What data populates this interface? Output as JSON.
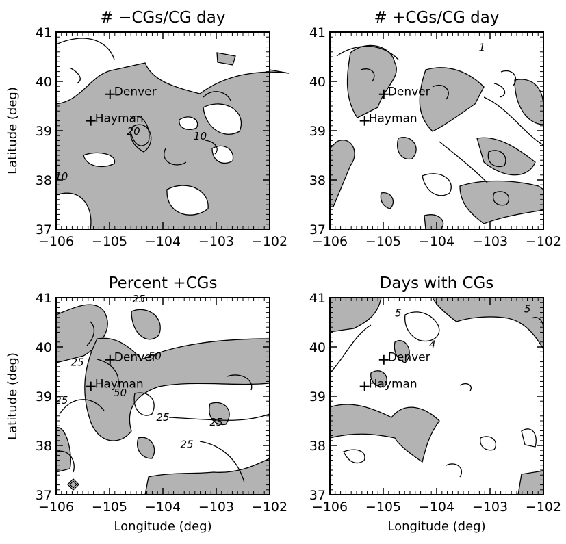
{
  "figure": {
    "shade_color": "#b3b3b3",
    "line_color": "#000000"
  },
  "chart_data": [
    {
      "type": "heatmap",
      "title": "# −CGs/CG day",
      "xlabel": "",
      "ylabel": "Latitude (deg)",
      "xlim": [
        -106,
        -102
      ],
      "ylim": [
        37,
        41
      ],
      "xticks": [
        "−106",
        "−105",
        "−104",
        "−103",
        "−102"
      ],
      "yticks": [
        "37",
        "38",
        "39",
        "40",
        "41"
      ],
      "places": [
        {
          "name": "Denver",
          "lon": -104.99,
          "lat": 39.74
        },
        {
          "name": "Hayman",
          "lon": -105.35,
          "lat": 39.2
        }
      ],
      "contour_labels": [
        {
          "text": "20",
          "lon": -104.55,
          "lat": 38.92
        },
        {
          "text": "10",
          "lon": -103.3,
          "lat": 38.82
        },
        {
          "text": "10",
          "lon": -105.9,
          "lat": 38.0
        }
      ]
    },
    {
      "type": "heatmap",
      "title": "# +CGs/CG day",
      "xlabel": "",
      "ylabel": "",
      "xlim": [
        -106,
        -102
      ],
      "ylim": [
        37,
        41
      ],
      "xticks": [
        "−106",
        "−105",
        "−104",
        "−103",
        "−102"
      ],
      "yticks": [
        "37",
        "38",
        "39",
        "40",
        "41"
      ],
      "places": [
        {
          "name": "Denver",
          "lon": -104.99,
          "lat": 39.74
        },
        {
          "name": "Hayman",
          "lon": -105.35,
          "lat": 39.2
        }
      ],
      "contour_labels": [
        {
          "text": "1",
          "lon": -103.15,
          "lat": 40.62
        }
      ]
    },
    {
      "type": "heatmap",
      "title": "Percent +CGs",
      "xlabel": "Longitude (deg)",
      "ylabel": "Latitude (deg)",
      "xlim": [
        -106,
        -102
      ],
      "ylim": [
        37,
        41
      ],
      "xticks": [
        "−106",
        "−105",
        "−104",
        "−103",
        "−102"
      ],
      "yticks": [
        "37",
        "38",
        "39",
        "40",
        "41"
      ],
      "places": [
        {
          "name": "Denver",
          "lon": -104.99,
          "lat": 39.74
        },
        {
          "name": "Hayman",
          "lon": -105.35,
          "lat": 39.2
        }
      ],
      "contour_labels": [
        {
          "text": "25",
          "lon": -104.45,
          "lat": 40.9
        },
        {
          "text": "25",
          "lon": -105.6,
          "lat": 39.62
        },
        {
          "text": "25",
          "lon": -104.0,
          "lat": 38.5
        },
        {
          "text": "25",
          "lon": -103.0,
          "lat": 38.4
        },
        {
          "text": "25",
          "lon": -103.55,
          "lat": 37.95
        },
        {
          "text": "25",
          "lon": -105.9,
          "lat": 38.85
        },
        {
          "text": "50",
          "lon": -104.15,
          "lat": 39.74
        },
        {
          "text": "50",
          "lon": -104.8,
          "lat": 39.0
        }
      ]
    },
    {
      "type": "heatmap",
      "title": "Days with CGs",
      "xlabel": "Longitude (deg)",
      "ylabel": "",
      "xlim": [
        -106,
        -102
      ],
      "ylim": [
        37,
        41
      ],
      "xticks": [
        "−106",
        "−105",
        "−104",
        "−103",
        "−102"
      ],
      "yticks": [
        "37",
        "38",
        "39",
        "40",
        "41"
      ],
      "places": [
        {
          "name": "Denver",
          "lon": -104.99,
          "lat": 39.74
        },
        {
          "name": "Hayman",
          "lon": -105.35,
          "lat": 39.2
        }
      ],
      "contour_labels": [
        {
          "text": "5",
          "lon": -104.72,
          "lat": 40.62
        },
        {
          "text": "5",
          "lon": -102.3,
          "lat": 40.7
        },
        {
          "text": "4",
          "lon": -104.08,
          "lat": 39.98
        }
      ]
    }
  ]
}
